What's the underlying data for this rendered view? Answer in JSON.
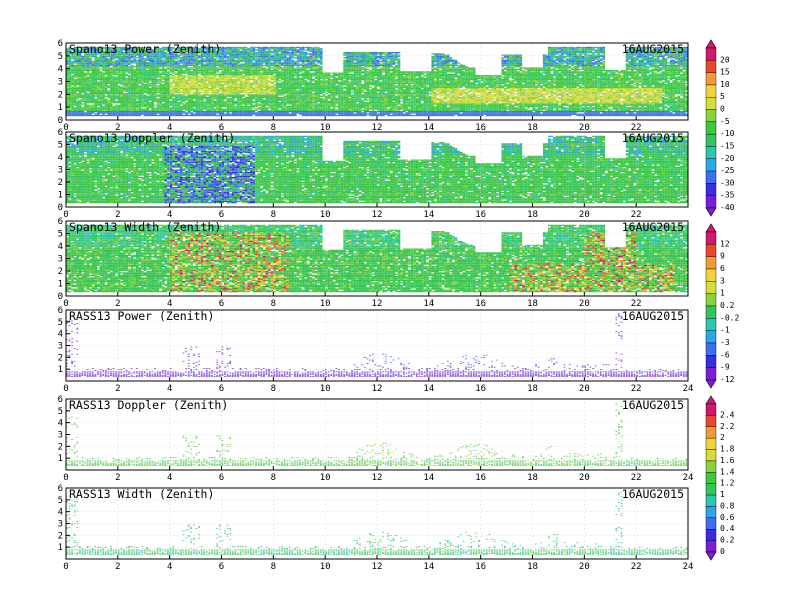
{
  "chart_data": [
    {
      "type": "heatmap",
      "title": "Spano13 Power (Zenith)",
      "date": "16AUG2015",
      "xlim": [
        0,
        24
      ],
      "ylim": [
        0,
        6
      ],
      "xticks": [
        0,
        2,
        4,
        6,
        8,
        10,
        12,
        14,
        16,
        18,
        20,
        22
      ],
      "yticks": [
        0,
        1,
        2,
        3,
        4,
        5,
        6
      ],
      "colorbar": 0
    },
    {
      "type": "heatmap",
      "title": "Spano13 Doppler (Zenith)",
      "date": "16AUG2015",
      "xlim": [
        0,
        24
      ],
      "ylim": [
        0,
        6
      ],
      "xticks": [
        0,
        2,
        4,
        6,
        8,
        10,
        12,
        14,
        16,
        18,
        20,
        22
      ],
      "yticks": [
        0,
        1,
        2,
        3,
        4,
        5,
        6
      ],
      "colorbar": 0
    },
    {
      "type": "heatmap",
      "title": "Spano13 Width (Zenith)",
      "date": "16AUG2015",
      "xlim": [
        0,
        24
      ],
      "ylim": [
        0,
        6
      ],
      "xticks": [
        0,
        2,
        4,
        6,
        8,
        10,
        12,
        14,
        16,
        18,
        20,
        22
      ],
      "yticks": [
        0,
        1,
        2,
        3,
        4,
        5,
        6
      ],
      "colorbar": 1
    },
    {
      "type": "heatmap",
      "title": "RASS13 Power (Zenith)",
      "date": "16AUG2015",
      "xlim": [
        0,
        24
      ],
      "ylim": [
        0,
        6
      ],
      "xticks": [
        0,
        2,
        4,
        6,
        8,
        10,
        12,
        14,
        16,
        18,
        20,
        22,
        24
      ],
      "yticks": [
        1,
        2,
        3,
        4,
        5,
        6
      ],
      "colorbar": 1
    },
    {
      "type": "heatmap",
      "title": "RASS13 Doppler (Zenith)",
      "date": "16AUG2015",
      "xlim": [
        0,
        24
      ],
      "ylim": [
        0,
        6
      ],
      "xticks": [
        0,
        2,
        4,
        6,
        8,
        10,
        12,
        14,
        16,
        18,
        20,
        22,
        24
      ],
      "yticks": [
        1,
        2,
        3,
        4,
        5,
        6
      ],
      "colorbar": 2
    },
    {
      "type": "heatmap",
      "title": "RASS13 Width (Zenith)",
      "date": "16AUG2015",
      "xlim": [
        0,
        24
      ],
      "ylim": [
        0,
        6
      ],
      "xticks": [
        0,
        2,
        4,
        6,
        8,
        10,
        12,
        14,
        16,
        18,
        20,
        22,
        24
      ],
      "yticks": [
        1,
        2,
        3,
        4,
        5,
        6
      ],
      "colorbar": 2
    }
  ],
  "colorbars": [
    {
      "labels": [
        "20",
        "15",
        "10",
        "5",
        "0",
        "-5",
        "-10",
        "-15",
        "-20",
        "-25",
        "-30",
        "-35",
        "-40"
      ]
    },
    {
      "labels": [
        "12",
        "9",
        "6",
        "3",
        "1",
        "0.2",
        "-0.2",
        "-1",
        "-3",
        "-6",
        "-9",
        "-12"
      ]
    },
    {
      "labels": [
        "2.4",
        "2.2",
        "2",
        "1.8",
        "1.6",
        "1.4",
        "1.2",
        "1",
        "0.8",
        "0.6",
        "0.4",
        "0.2",
        "0"
      ]
    }
  ],
  "palette": [
    "#7b1ed6",
    "#3a2ee0",
    "#3d6ff0",
    "#2aa7e6",
    "#2cc7b0",
    "#33c45a",
    "#3cc83c",
    "#8ad23a",
    "#d6dd3a",
    "#f0d23a",
    "#f29a32",
    "#e8472e",
    "#d2186e"
  ]
}
